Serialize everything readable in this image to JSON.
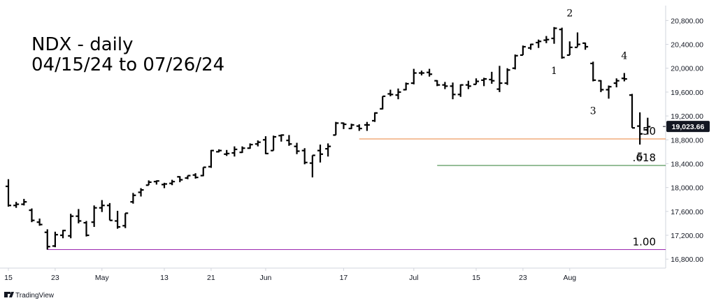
{
  "chart_data": {
    "type": "ohlc",
    "title_line1": "NDX - daily",
    "title_line2": "04/15/24 to 07/26/24",
    "ylim": [
      16650,
      21050
    ],
    "y_ticks": [
      "20,800.00",
      "20,400.00",
      "20,000.00",
      "19,600.00",
      "19,200.00",
      "18,800.00",
      "18,400.00",
      "18,000.00",
      "17,600.00",
      "17,200.00",
      "16,800.00"
    ],
    "y_tick_values": [
      20800,
      20400,
      20000,
      19600,
      19200,
      18800,
      18400,
      18000,
      17600,
      17200,
      16800
    ],
    "x_ticks": [
      {
        "label": "15",
        "bar": 0
      },
      {
        "label": "23",
        "bar": 6
      },
      {
        "label": "May",
        "bar": 12
      },
      {
        "label": "13",
        "bar": 20
      },
      {
        "label": "21",
        "bar": 26
      },
      {
        "label": "Jun",
        "bar": 33
      },
      {
        "label": "17",
        "bar": 43
      },
      {
        "label": "Jul",
        "bar": 52
      },
      {
        "label": "15",
        "bar": 60
      },
      {
        "label": "23",
        "bar": 66
      },
      {
        "label": "Aug",
        "bar": 72
      }
    ],
    "last_price": 19023.66,
    "last_price_label": "19,023.66",
    "ohlc": [
      [
        18020,
        18140,
        17680,
        17700
      ],
      [
        17700,
        17760,
        17660,
        17720
      ],
      [
        17720,
        17810,
        17700,
        17760
      ],
      [
        17620,
        17650,
        17420,
        17450
      ],
      [
        17420,
        17480,
        17360,
        17380
      ],
      [
        17250,
        17300,
        16960,
        17010
      ],
      [
        17020,
        17260,
        17000,
        17210
      ],
      [
        17200,
        17290,
        17150,
        17280
      ],
      [
        17190,
        17560,
        17150,
        17520
      ],
      [
        17520,
        17640,
        17400,
        17440
      ],
      [
        17410,
        17440,
        17180,
        17200
      ],
      [
        17420,
        17700,
        17340,
        17660
      ],
      [
        17660,
        17790,
        17590,
        17700
      ],
      [
        17700,
        17740,
        17450,
        17450
      ],
      [
        17440,
        17610,
        17310,
        17340
      ],
      [
        17360,
        17570,
        17320,
        17570
      ],
      [
        17760,
        17910,
        17730,
        17870
      ],
      [
        17920,
        17990,
        17850,
        17960
      ],
      [
        18040,
        18120,
        18040,
        18090
      ],
      [
        18100,
        18120,
        18050,
        18110
      ],
      [
        18050,
        18080,
        17990,
        18060
      ],
      [
        18070,
        18130,
        18040,
        18100
      ],
      [
        18180,
        18190,
        18090,
        18130
      ],
      [
        18160,
        18200,
        18140,
        18200
      ],
      [
        18210,
        18240,
        18150,
        18170
      ],
      [
        18200,
        18340,
        18190,
        18340
      ],
      [
        18350,
        18630,
        18330,
        18620
      ],
      [
        18600,
        18640,
        18590,
        18620
      ],
      [
        18560,
        18630,
        18530,
        18570
      ],
      [
        18580,
        18690,
        18520,
        18640
      ],
      [
        18590,
        18690,
        18580,
        18660
      ],
      [
        18660,
        18740,
        18650,
        18720
      ],
      [
        18730,
        18790,
        18690,
        18760
      ],
      [
        18800,
        18860,
        18560,
        18570
      ],
      [
        18620,
        18870,
        18620,
        18850
      ],
      [
        18870,
        18890,
        18770,
        18880
      ],
      [
        18790,
        18880,
        18700,
        18730
      ],
      [
        18690,
        18750,
        18560,
        18610
      ],
      [
        18620,
        18660,
        18390,
        18420
      ],
      [
        18410,
        18540,
        18170,
        18540
      ],
      [
        18620,
        18720,
        18420,
        18560
      ],
      [
        18650,
        18740,
        18520,
        18690
      ],
      [
        18880,
        19100,
        18880,
        19080
      ],
      [
        19080,
        19090,
        18980,
        19060
      ],
      [
        18990,
        19070,
        18980,
        19050
      ],
      [
        19030,
        19060,
        18950,
        18990
      ],
      [
        19050,
        19100,
        18950,
        19050
      ],
      [
        19120,
        19260,
        19100,
        19250
      ],
      [
        19320,
        19530,
        19310,
        19530
      ],
      [
        19570,
        19640,
        19530,
        19560
      ],
      [
        19550,
        19660,
        19480,
        19600
      ],
      [
        19640,
        19760,
        19630,
        19740
      ],
      [
        19750,
        19990,
        19730,
        19920
      ],
      [
        19920,
        19960,
        19880,
        19920
      ],
      [
        19930,
        19990,
        19860,
        19900
      ],
      [
        19790,
        19800,
        19700,
        19720
      ],
      [
        19720,
        19770,
        19650,
        19700
      ],
      [
        19700,
        19760,
        19480,
        19560
      ],
      [
        19560,
        19730,
        19520,
        19720
      ],
      [
        19720,
        19790,
        19650,
        19700
      ],
      [
        19730,
        19830,
        19730,
        19780
      ],
      [
        19800,
        19840,
        19700,
        19820
      ],
      [
        19810,
        19940,
        19740,
        19790
      ],
      [
        19650,
        20040,
        19600,
        19750
      ],
      [
        19750,
        20000,
        19720,
        19970
      ],
      [
        20000,
        20230,
        19980,
        20210
      ],
      [
        20220,
        20380,
        20220,
        20360
      ],
      [
        20340,
        20410,
        20310,
        20400
      ],
      [
        20430,
        20480,
        20340,
        20450
      ],
      [
        20470,
        20540,
        20420,
        20480
      ],
      [
        20500,
        20690,
        20410,
        20670
      ],
      [
        20650,
        20680,
        20160,
        20180
      ],
      [
        20220,
        20450,
        20220,
        20350
      ],
      [
        20350,
        20600,
        20360,
        20400
      ],
      [
        20420,
        20430,
        20310,
        20360
      ],
      [
        20080,
        20110,
        19780,
        19800
      ],
      [
        19790,
        19800,
        19600,
        19640
      ],
      [
        19640,
        19710,
        19490,
        19690
      ],
      [
        19750,
        19830,
        19680,
        19790
      ],
      [
        19830,
        19920,
        19780,
        19820
      ],
      [
        19550,
        19570,
        19000,
        19000
      ],
      [
        19030,
        19260,
        18720,
        18900
      ],
      [
        18970,
        19170,
        18890,
        19020
      ]
    ],
    "fib_levels": [
      {
        "label": ".50",
        "value": 18815,
        "color": "#e8803a",
        "from_bar": 45
      },
      {
        "label": ".618",
        "value": 18370,
        "color": "#2e7d32",
        "from_bar": 55
      },
      {
        "label": "1.00",
        "value": 16960,
        "color": "#9c27b0",
        "from_bar": 5
      }
    ],
    "wave_labels": [
      {
        "label": "2",
        "bar": 72,
        "price": 20750,
        "pos": "above"
      },
      {
        "label": "1",
        "bar": 70,
        "price": 20160,
        "pos": "below"
      },
      {
        "label": "4",
        "bar": 79,
        "price": 20040,
        "pos": "above"
      },
      {
        "label": "3",
        "bar": 75,
        "price": 19490,
        "pos": "below"
      },
      {
        "label": "5",
        "bar": 81,
        "price": 18720,
        "pos": "below"
      }
    ]
  },
  "branding": {
    "text": "TradingView",
    "logo": "tradingview-logo"
  }
}
